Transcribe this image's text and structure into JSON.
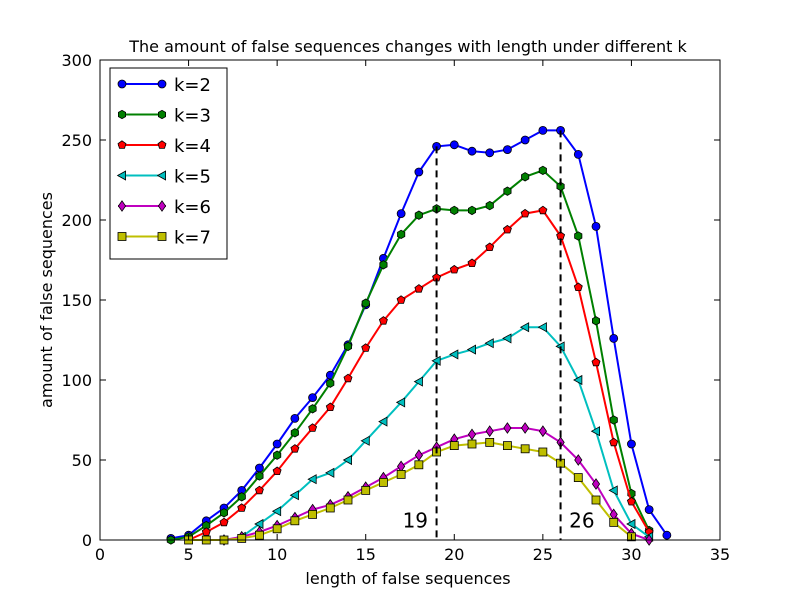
{
  "chart_data": {
    "type": "line",
    "title": "The amount of false sequences changes with length under different k",
    "xlabel": "length of false sequences",
    "ylabel": "amount of false sequences",
    "xlim": [
      0,
      35
    ],
    "ylim": [
      0,
      300
    ],
    "xticks": [
      0,
      5,
      10,
      15,
      20,
      25,
      30,
      35
    ],
    "yticks": [
      0,
      50,
      100,
      150,
      200,
      250,
      300
    ],
    "grid": false,
    "legend_position": "top-left",
    "series": [
      {
        "name": "k=2",
        "color": "#0000ff",
        "marker": "circle",
        "x": [
          4,
          5,
          6,
          7,
          8,
          9,
          10,
          11,
          12,
          13,
          14,
          15,
          16,
          17,
          18,
          19,
          20,
          21,
          22,
          23,
          24,
          25,
          26,
          27,
          28,
          29,
          30,
          31,
          32
        ],
        "values": [
          1,
          3,
          12,
          20,
          31,
          45,
          60,
          76,
          89,
          103,
          122,
          147,
          176,
          204,
          230,
          246,
          247,
          243,
          242,
          244,
          250,
          256,
          256,
          241,
          196,
          126,
          60,
          19,
          3
        ]
      },
      {
        "name": "k=3",
        "color": "#008000",
        "marker": "hexagon",
        "x": [
          4,
          5,
          6,
          7,
          8,
          9,
          10,
          11,
          12,
          13,
          14,
          15,
          16,
          17,
          18,
          19,
          20,
          21,
          22,
          23,
          24,
          25,
          26,
          27,
          28,
          29,
          30,
          31
        ],
        "values": [
          0,
          2,
          9,
          17,
          27,
          40,
          53,
          67,
          82,
          98,
          121,
          148,
          172,
          191,
          203,
          207,
          206,
          206,
          209,
          218,
          227,
          231,
          221,
          190,
          137,
          75,
          29,
          6
        ]
      },
      {
        "name": "k=4",
        "color": "#ff0000",
        "marker": "pentagon",
        "x": [
          5,
          6,
          7,
          8,
          9,
          10,
          11,
          12,
          13,
          14,
          15,
          16,
          17,
          18,
          19,
          20,
          21,
          22,
          23,
          24,
          25,
          26,
          27,
          28,
          29,
          30,
          31
        ],
        "values": [
          0,
          5,
          11,
          20,
          31,
          43,
          57,
          70,
          83,
          101,
          120,
          137,
          150,
          157,
          164,
          169,
          173,
          183,
          194,
          204,
          206,
          190,
          158,
          111,
          61,
          24,
          5
        ]
      },
      {
        "name": "k=5",
        "color": "#00bfbf",
        "marker": "triangle-left",
        "x": [
          8,
          9,
          10,
          11,
          12,
          13,
          14,
          15,
          16,
          17,
          18,
          19,
          20,
          21,
          22,
          23,
          24,
          25,
          26,
          27,
          28,
          29,
          30,
          31
        ],
        "values": [
          2,
          10,
          18,
          28,
          38,
          42,
          50,
          62,
          74,
          86,
          99,
          112,
          116,
          119,
          123,
          126,
          133,
          133,
          121,
          100,
          68,
          31,
          10,
          2
        ]
      },
      {
        "name": "k=6",
        "color": "#bf00bf",
        "marker": "diamond",
        "x": [
          7,
          8,
          9,
          10,
          11,
          12,
          13,
          14,
          15,
          16,
          17,
          18,
          19,
          20,
          21,
          22,
          23,
          24,
          25,
          26,
          27,
          28,
          29,
          30,
          31
        ],
        "values": [
          0,
          2,
          5,
          9,
          14,
          19,
          22,
          27,
          33,
          39,
          46,
          53,
          58,
          63,
          66,
          68,
          70,
          70,
          68,
          61,
          50,
          35,
          16,
          4,
          0
        ]
      },
      {
        "name": "k=7",
        "color": "#bfbf00",
        "marker": "square",
        "x": [
          5,
          6,
          7,
          8,
          9,
          10,
          11,
          12,
          13,
          14,
          15,
          16,
          17,
          18,
          19,
          20,
          21,
          22,
          23,
          24,
          25,
          26,
          27,
          28,
          29,
          30
        ],
        "values": [
          0,
          0,
          0,
          1,
          3,
          7,
          12,
          16,
          20,
          25,
          31,
          36,
          41,
          47,
          55,
          59,
          60,
          61,
          59,
          57,
          55,
          48,
          39,
          25,
          11,
          2
        ]
      }
    ],
    "vlines": [
      {
        "x": 19,
        "y_top": 246,
        "label": "19",
        "label_x": 17.8,
        "label_y": 14
      },
      {
        "x": 26,
        "y_top": 256,
        "label": "26",
        "label_x": 27.2,
        "label_y": 14
      }
    ]
  }
}
